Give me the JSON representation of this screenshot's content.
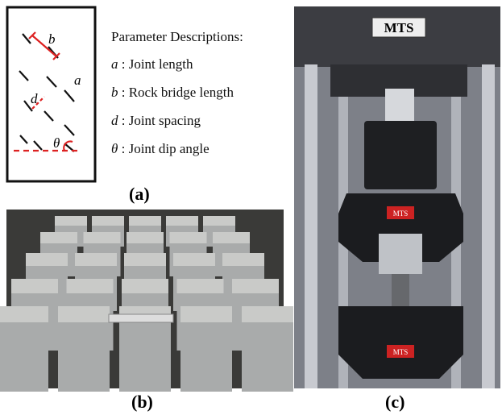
{
  "panel_a": {
    "diagram_labels": [
      "b",
      "a",
      "d",
      "θ"
    ],
    "heading": "Parameter Descriptions:",
    "parameters": [
      {
        "symbol": "a",
        "description": ": Joint length"
      },
      {
        "symbol": "b",
        "description": ": Rock bridge length"
      },
      {
        "symbol": "d",
        "description": ": Joint spacing"
      },
      {
        "symbol": "θ",
        "description": ": Joint dip angle"
      }
    ],
    "caption": "(a)"
  },
  "panel_b": {
    "caption": "(b)"
  },
  "panel_c": {
    "caption": "(c)",
    "machine_label": "MTS"
  }
}
